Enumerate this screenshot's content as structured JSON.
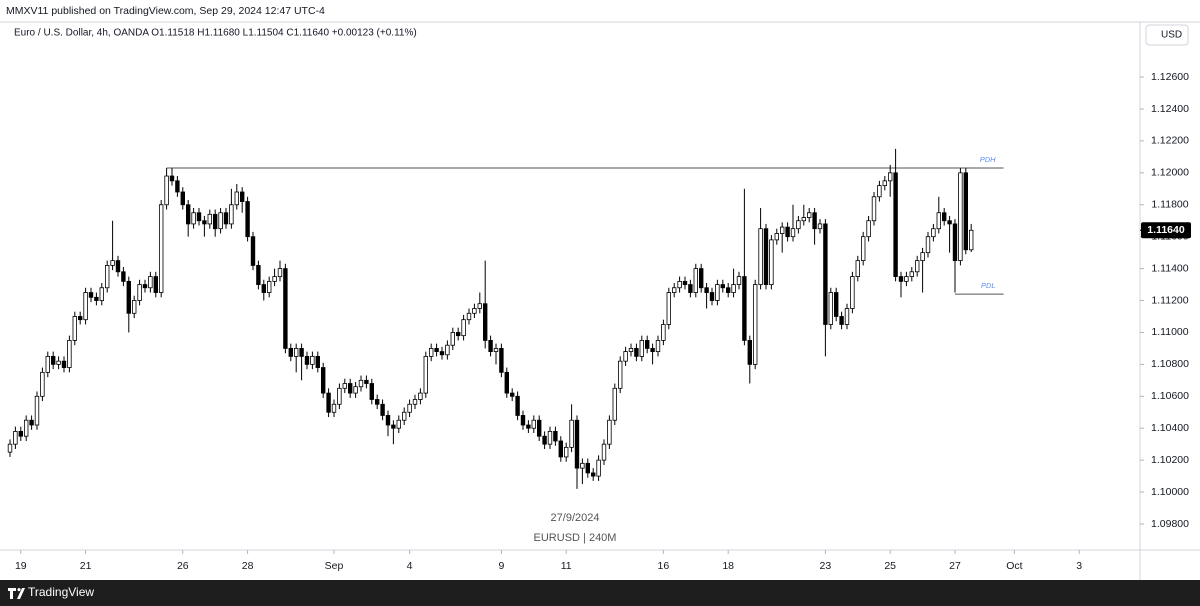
{
  "header": "MMXV11 published on TradingView.com, Sep 29, 2024 12:47 UTC-4",
  "legend_text": "Euro / U.S. Dollar, 4h, OANDA  O1.11518  H1.11680  L1.11504  C1.11640  +0.00123 (+0.11%)",
  "currency": "USD",
  "footer": "TradingView",
  "watermark": [
    "27/9/2024",
    "EURUSD | 240M"
  ],
  "chart_data": {
    "type": "candlestick",
    "up_color": "#ffffff",
    "down_color": "#000000",
    "border_color": "#000000",
    "grid": false,
    "xlim": [
      -1.85,
      209.26
    ],
    "xticks": [
      {
        "value": 2,
        "label": "19"
      },
      {
        "value": 14,
        "label": "21"
      },
      {
        "value": 32,
        "label": "26"
      },
      {
        "value": 44,
        "label": "28"
      },
      {
        "value": 60,
        "label": "Sep"
      },
      {
        "value": 74,
        "label": "4"
      },
      {
        "value": 91,
        "label": "9"
      },
      {
        "value": 103,
        "label": "11"
      },
      {
        "value": 121,
        "label": "16"
      },
      {
        "value": 133,
        "label": "18"
      },
      {
        "value": 151,
        "label": "23"
      },
      {
        "value": 163,
        "label": "25"
      },
      {
        "value": 175,
        "label": "27"
      },
      {
        "value": 186,
        "label": "Oct"
      },
      {
        "value": 198,
        "label": "3"
      }
    ],
    "ylim": [
      1.09637,
      1.12945
    ],
    "yticks": [
      {
        "value": 1.098,
        "label": "1.09800"
      },
      {
        "value": 1.1,
        "label": "1.10000"
      },
      {
        "value": 1.102,
        "label": "1.10200"
      },
      {
        "value": 1.104,
        "label": "1.10400"
      },
      {
        "value": 1.106,
        "label": "1.10600"
      },
      {
        "value": 1.108,
        "label": "1.10800"
      },
      {
        "value": 1.11,
        "label": "1.11000"
      },
      {
        "value": 1.112,
        "label": "1.11200"
      },
      {
        "value": 1.114,
        "label": "1.11400"
      },
      {
        "value": 1.116,
        "label": "1.11600"
      },
      {
        "value": 1.118,
        "label": "1.11800"
      },
      {
        "value": 1.12,
        "label": "1.12000"
      },
      {
        "value": 1.122,
        "label": "1.12200"
      },
      {
        "value": 1.124,
        "label": "1.12400"
      },
      {
        "value": 1.126,
        "label": "1.12600"
      }
    ],
    "last_price_label": "1.11640",
    "levels": [
      {
        "label": "PDH",
        "value": 1.1203,
        "from": 29,
        "to": 184,
        "color": "#5b8def"
      },
      {
        "label": "PDL",
        "value": 1.1124,
        "from": 175,
        "to": 184,
        "color": "#5b8def"
      }
    ],
    "open": [
      1.1025,
      1.103,
      1.1038,
      1.1035,
      1.1045,
      1.1042,
      1.106,
      1.1075,
      1.1085,
      1.108,
      1.1082,
      1.1078,
      1.1095,
      1.111,
      1.1108,
      1.1125,
      1.1122,
      1.112,
      1.1128,
      1.1142,
      1.1145,
      1.1138,
      1.1132,
      1.1112,
      1.112,
      1.113,
      1.1128,
      1.1135,
      1.1125,
      1.118,
      1.1198,
      1.1195,
      1.1188,
      1.118,
      1.1168,
      1.1175,
      1.117,
      1.1168,
      1.1174,
      1.1165,
      1.1175,
      1.1168,
      1.118,
      1.1188,
      1.1182,
      1.116,
      1.1142,
      1.113,
      1.1125,
      1.1132,
      1.1135,
      1.114,
      1.109,
      1.1085,
      1.109,
      1.1085,
      1.108,
      1.1085,
      1.1078,
      1.1062,
      1.105,
      1.1055,
      1.1065,
      1.1068,
      1.1062,
      1.1066,
      1.107,
      1.1068,
      1.1058,
      1.1055,
      1.1048,
      1.1042,
      1.104,
      1.1045,
      1.105,
      1.1055,
      1.1058,
      1.1062,
      1.1085,
      1.109,
      1.1088,
      1.1086,
      1.1092,
      1.11,
      1.1098,
      1.1108,
      1.1112,
      1.1115,
      1.1118,
      1.1095,
      1.1088,
      1.109,
      1.1075,
      1.1062,
      1.106,
      1.1048,
      1.1042,
      1.104,
      1.1045,
      1.1035,
      1.103,
      1.1038,
      1.1032,
      1.1022,
      1.1028,
      1.1045,
      1.1015,
      1.1018,
      1.1012,
      1.101,
      1.102,
      1.103,
      1.1045,
      1.1065,
      1.1082,
      1.1088,
      1.109,
      1.1085,
      1.1095,
      1.109,
      1.1088,
      1.1095,
      1.1105,
      1.1125,
      1.1128,
      1.1132,
      1.113,
      1.1125,
      1.114,
      1.1128,
      1.1125,
      1.112,
      1.113,
      1.1128,
      1.1125,
      1.113,
      1.1135,
      1.1095,
      1.108,
      1.113,
      1.1165,
      1.113,
      1.1158,
      1.1162,
      1.1166,
      1.116,
      1.1165,
      1.117,
      1.1172,
      1.1175,
      1.1165,
      1.1168,
      1.1105,
      1.1125,
      1.111,
      1.1105,
      1.1115,
      1.1135,
      1.1145,
      1.116,
      1.117,
      1.1185,
      1.1192,
      1.1195,
      1.12,
      1.1135,
      1.1132,
      1.1135,
      1.1138,
      1.1145,
      1.115,
      1.116,
      1.1165,
      1.1175,
      1.117,
      1.1168,
      1.1145,
      1.12,
      1.11518
    ],
    "high": [
      1.1033,
      1.1041,
      1.1041,
      1.1048,
      1.1048,
      1.1063,
      1.1078,
      1.1088,
      1.1088,
      1.1085,
      1.1085,
      1.1098,
      1.1113,
      1.1113,
      1.1128,
      1.1128,
      1.1125,
      1.1131,
      1.1145,
      1.117,
      1.1148,
      1.1141,
      1.1135,
      1.1123,
      1.1133,
      1.1133,
      1.1138,
      1.1138,
      1.1183,
      1.1203,
      1.1203,
      1.1198,
      1.1191,
      1.1183,
      1.1178,
      1.1178,
      1.1173,
      1.1177,
      1.1177,
      1.1178,
      1.1178,
      1.119,
      1.1193,
      1.1191,
      1.1185,
      1.1163,
      1.1145,
      1.1133,
      1.1135,
      1.114,
      1.1145,
      1.1143,
      1.1093,
      1.1093,
      1.1093,
      1.1088,
      1.1088,
      1.1088,
      1.1081,
      1.1065,
      1.1058,
      1.1068,
      1.1071,
      1.1071,
      1.1069,
      1.1073,
      1.1073,
      1.1071,
      1.1061,
      1.1058,
      1.1051,
      1.1045,
      1.1048,
      1.1053,
      1.1058,
      1.1061,
      1.1065,
      1.1088,
      1.1093,
      1.1093,
      1.1091,
      1.1095,
      1.1103,
      1.1103,
      1.1111,
      1.1115,
      1.1118,
      1.1125,
      1.1145,
      1.1098,
      1.1093,
      1.1093,
      1.1078,
      1.1065,
      1.1063,
      1.1051,
      1.1045,
      1.1048,
      1.1048,
      1.1038,
      1.1041,
      1.1041,
      1.1035,
      1.1031,
      1.1055,
      1.1048,
      1.1021,
      1.1021,
      1.1015,
      1.1023,
      1.1033,
      1.1048,
      1.1068,
      1.1085,
      1.1091,
      1.1093,
      1.1093,
      1.1098,
      1.1098,
      1.1093,
      1.1098,
      1.1108,
      1.1128,
      1.1131,
      1.1135,
      1.1135,
      1.1133,
      1.1143,
      1.1143,
      1.1131,
      1.1128,
      1.1133,
      1.1133,
      1.1131,
      1.114,
      1.1138,
      1.119,
      1.1098,
      1.1133,
      1.1178,
      1.1168,
      1.1161,
      1.1165,
      1.1169,
      1.1169,
      1.118,
      1.1173,
      1.118,
      1.1178,
      1.1178,
      1.1171,
      1.1171,
      1.1128,
      1.1128,
      1.1113,
      1.1118,
      1.1138,
      1.1148,
      1.1163,
      1.1173,
      1.1188,
      1.1195,
      1.1198,
      1.1205,
      1.1215,
      1.1138,
      1.1138,
      1.1141,
      1.1148,
      1.1153,
      1.1163,
      1.1168,
      1.1185,
      1.1178,
      1.1173,
      1.1171,
      1.1203,
      1.1203,
      1.1168
    ],
    "low": [
      1.1022,
      1.1027,
      1.1032,
      1.1032,
      1.1039,
      1.1039,
      1.1057,
      1.1072,
      1.1077,
      1.1077,
      1.1075,
      1.1075,
      1.1092,
      1.1105,
      1.1105,
      1.1119,
      1.1117,
      1.1117,
      1.1125,
      1.1139,
      1.1135,
      1.1129,
      1.11,
      1.1109,
      1.1117,
      1.1125,
      1.1125,
      1.1122,
      1.1122,
      1.1177,
      1.1192,
      1.1185,
      1.1177,
      1.116,
      1.1165,
      1.1167,
      1.116,
      1.1165,
      1.116,
      1.1162,
      1.1165,
      1.1165,
      1.1177,
      1.1175,
      1.1157,
      1.1139,
      1.1127,
      1.112,
      1.1122,
      1.1129,
      1.1132,
      1.1087,
      1.1082,
      1.1075,
      1.107,
      1.1077,
      1.1077,
      1.1075,
      1.1059,
      1.1047,
      1.1047,
      1.1052,
      1.1062,
      1.1059,
      1.1059,
      1.1063,
      1.1065,
      1.1055,
      1.1052,
      1.1045,
      1.1035,
      1.103,
      1.1037,
      1.1042,
      1.1047,
      1.1052,
      1.1055,
      1.1059,
      1.1082,
      1.1085,
      1.1083,
      1.1083,
      1.1089,
      1.1095,
      1.1095,
      1.1105,
      1.1109,
      1.1112,
      1.109,
      1.1085,
      1.108,
      1.1072,
      1.1059,
      1.1057,
      1.1045,
      1.1039,
      1.1037,
      1.1037,
      1.1032,
      1.1027,
      1.1027,
      1.1029,
      1.1019,
      1.1019,
      1.1025,
      1.1002,
      1.1005,
      1.1009,
      1.1007,
      1.1007,
      1.1017,
      1.1027,
      1.1042,
      1.1062,
      1.1079,
      1.1085,
      1.1082,
      1.1082,
      1.1087,
      1.108,
      1.1085,
      1.1092,
      1.1102,
      1.1122,
      1.1125,
      1.1127,
      1.1122,
      1.1122,
      1.1125,
      1.1115,
      1.1117,
      1.1117,
      1.1125,
      1.1122,
      1.1122,
      1.1127,
      1.1092,
      1.1068,
      1.1077,
      1.1127,
      1.1127,
      1.1127,
      1.1155,
      1.115,
      1.1157,
      1.1157,
      1.1162,
      1.1167,
      1.1169,
      1.1155,
      1.1162,
      1.1085,
      1.1102,
      1.1107,
      1.1102,
      1.1102,
      1.1112,
      1.1132,
      1.1142,
      1.1157,
      1.1167,
      1.1182,
      1.1189,
      1.1185,
      1.1132,
      1.1122,
      1.1129,
      1.1132,
      1.1135,
      1.1125,
      1.1147,
      1.1157,
      1.1162,
      1.1167,
      1.115,
      1.1125,
      1.1142,
      1.1149,
      1.11504
    ],
    "close": [
      1.103,
      1.1038,
      1.1035,
      1.1045,
      1.1042,
      1.106,
      1.1075,
      1.1085,
      1.108,
      1.1082,
      1.1078,
      1.1095,
      1.111,
      1.1108,
      1.1125,
      1.1122,
      1.112,
      1.1128,
      1.1142,
      1.1145,
      1.1138,
      1.1132,
      1.1112,
      1.112,
      1.113,
      1.1128,
      1.1135,
      1.1125,
      1.118,
      1.1198,
      1.1195,
      1.1188,
      1.118,
      1.1168,
      1.1175,
      1.117,
      1.1168,
      1.1174,
      1.1165,
      1.1175,
      1.1168,
      1.118,
      1.1188,
      1.1182,
      1.116,
      1.1142,
      1.113,
      1.1125,
      1.1132,
      1.1135,
      1.114,
      1.109,
      1.1085,
      1.109,
      1.1085,
      1.108,
      1.1085,
      1.1078,
      1.1062,
      1.105,
      1.1055,
      1.1065,
      1.1068,
      1.1062,
      1.1066,
      1.107,
      1.1068,
      1.1058,
      1.1055,
      1.1048,
      1.1042,
      1.104,
      1.1045,
      1.105,
      1.1055,
      1.1058,
      1.1062,
      1.1085,
      1.109,
      1.1088,
      1.1086,
      1.1092,
      1.11,
      1.1098,
      1.1108,
      1.1112,
      1.1115,
      1.1118,
      1.1095,
      1.1088,
      1.109,
      1.1075,
      1.1062,
      1.106,
      1.1048,
      1.1042,
      1.104,
      1.1045,
      1.1035,
      1.103,
      1.1038,
      1.1032,
      1.1022,
      1.1028,
      1.1045,
      1.1015,
      1.1018,
      1.1012,
      1.101,
      1.102,
      1.103,
      1.1045,
      1.1065,
      1.1082,
      1.1088,
      1.109,
      1.1085,
      1.1095,
      1.109,
      1.1088,
      1.1095,
      1.1105,
      1.1125,
      1.1128,
      1.1132,
      1.113,
      1.1125,
      1.114,
      1.1128,
      1.1125,
      1.112,
      1.113,
      1.1128,
      1.1125,
      1.113,
      1.1135,
      1.1095,
      1.108,
      1.113,
      1.1165,
      1.113,
      1.1158,
      1.1162,
      1.1166,
      1.116,
      1.1165,
      1.117,
      1.1172,
      1.1175,
      1.1165,
      1.1168,
      1.1105,
      1.1125,
      1.111,
      1.1105,
      1.1115,
      1.1135,
      1.1145,
      1.116,
      1.117,
      1.1185,
      1.1192,
      1.1195,
      1.12,
      1.1135,
      1.1132,
      1.1135,
      1.1138,
      1.1145,
      1.115,
      1.116,
      1.1165,
      1.1175,
      1.117,
      1.1168,
      1.1145,
      1.12,
      1.11518,
      1.1164
    ]
  }
}
